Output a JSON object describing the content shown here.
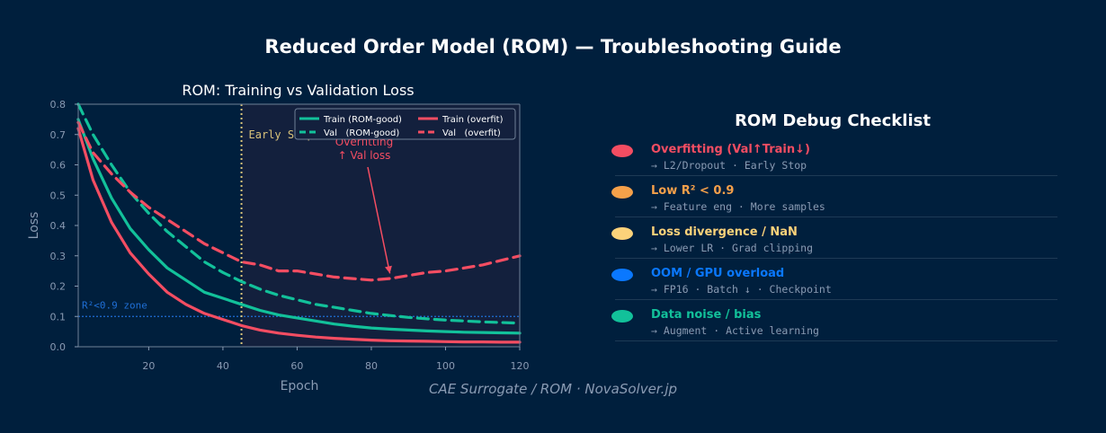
{
  "title": "Reduced Order Model (ROM) — Troubleshooting Guide",
  "footer": "CAE Surrogate / ROM  ·  NovaSolver.jp",
  "colors": {
    "background": "#001f3d",
    "plot_background": "#13203d",
    "train_good": "#12c19a",
    "overfit": "#f44d62",
    "early_stop": "#d9c27a",
    "r2_zone": "#1f6fd6",
    "muted_text": "#8a9bb3"
  },
  "chart_data": {
    "type": "line",
    "title": "ROM: Training vs Validation Loss",
    "xlabel": "Epoch",
    "ylabel": "Loss",
    "xlim": [
      1,
      120
    ],
    "ylim": [
      0,
      0.8
    ],
    "xticks": [
      20,
      40,
      60,
      80,
      100,
      120
    ],
    "yticks": [
      0.0,
      0.1,
      0.2,
      0.3,
      0.4,
      0.5,
      0.6,
      0.7,
      0.8
    ],
    "x": [
      1,
      5,
      10,
      15,
      20,
      25,
      30,
      35,
      40,
      45,
      50,
      55,
      60,
      65,
      70,
      75,
      80,
      85,
      90,
      95,
      100,
      105,
      110,
      115,
      120
    ],
    "series": [
      {
        "name": "Train (ROM-good)",
        "style": "solid",
        "color": "#12c19a",
        "values": [
          0.75,
          0.62,
          0.49,
          0.39,
          0.32,
          0.26,
          0.22,
          0.18,
          0.16,
          0.14,
          0.12,
          0.105,
          0.095,
          0.085,
          0.075,
          0.068,
          0.062,
          0.058,
          0.055,
          0.052,
          0.05,
          0.048,
          0.047,
          0.046,
          0.045
        ]
      },
      {
        "name": "Val   (ROM-good)",
        "style": "dashed",
        "color": "#12c19a",
        "values": [
          0.8,
          0.7,
          0.6,
          0.51,
          0.44,
          0.38,
          0.33,
          0.28,
          0.245,
          0.215,
          0.19,
          0.17,
          0.155,
          0.14,
          0.13,
          0.12,
          0.11,
          0.103,
          0.097,
          0.092,
          0.088,
          0.085,
          0.082,
          0.08,
          0.078
        ]
      },
      {
        "name": "Train (overfit)",
        "style": "solid",
        "color": "#f44d62",
        "values": [
          0.72,
          0.55,
          0.41,
          0.31,
          0.24,
          0.18,
          0.14,
          0.11,
          0.09,
          0.07,
          0.055,
          0.045,
          0.038,
          0.032,
          0.028,
          0.025,
          0.022,
          0.02,
          0.019,
          0.018,
          0.017,
          0.016,
          0.016,
          0.015,
          0.015
        ]
      },
      {
        "name": "Val   (overfit)",
        "style": "dashed",
        "color": "#f44d62",
        "values": [
          0.74,
          0.64,
          0.57,
          0.51,
          0.46,
          0.42,
          0.38,
          0.34,
          0.31,
          0.28,
          0.27,
          0.25,
          0.25,
          0.24,
          0.23,
          0.225,
          0.22,
          0.225,
          0.235,
          0.245,
          0.25,
          0.26,
          0.27,
          0.285,
          0.3
        ]
      }
    ],
    "legend": [
      "Train (ROM-good)",
      "Val   (ROM-good)",
      "Train (overfit)",
      "Val   (overfit)"
    ],
    "legend_location": "top-right",
    "annotations": {
      "early_stop": {
        "label": "Early Stop",
        "x": 45
      },
      "r2_zone": {
        "label": "R²<0.9 zone",
        "y": 0.1
      },
      "overfitting": {
        "line1": "Overfitting",
        "line2": "↑ Val loss",
        "x": 85,
        "y": 0.23
      }
    }
  },
  "checklist": {
    "title": "ROM Debug Checklist",
    "items": [
      {
        "label": "Overfitting (Val↑Train↓)",
        "desc": "→ L2/Dropout · Early Stop",
        "color": "#f44d62"
      },
      {
        "label": "Low R² < 0.9",
        "desc": "→ Feature eng · More samples",
        "color": "#f5a04a"
      },
      {
        "label": "Loss divergence / NaN",
        "desc": "→ Lower LR · Grad clipping",
        "color": "#fcd27a"
      },
      {
        "label": "OOM / GPU overload",
        "desc": "→ FP16 · Batch ↓ · Checkpoint",
        "color": "#0a78ff"
      },
      {
        "label": "Data noise / bias",
        "desc": "→ Augment · Active learning",
        "color": "#12c19a"
      }
    ]
  }
}
